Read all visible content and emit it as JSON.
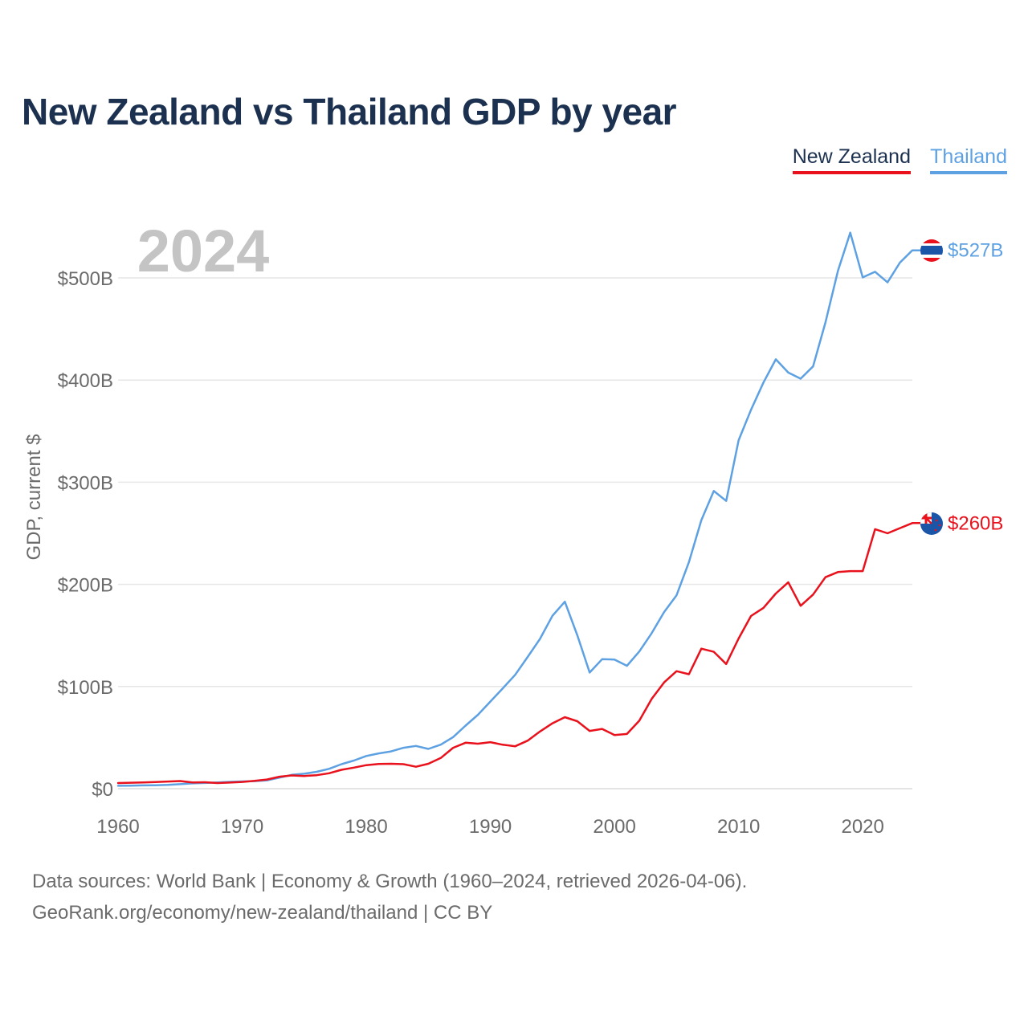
{
  "title": "New Zealand vs Thailand GDP by year",
  "legend": [
    "New Zealand",
    "Thailand"
  ],
  "footer": {
    "source": "Data sources: World Bank | Economy & Growth (1960–2024, retrieved 2026-04-06).",
    "credit": "GeoRank.org/economy/new-zealand/thailand | CC BY"
  },
  "chart_data": {
    "type": "line",
    "title": "New Zealand vs Thailand GDP by year",
    "year_label": "2024",
    "xlabel": "",
    "ylabel": "GDP, current $",
    "xlim": [
      1960,
      2024
    ],
    "ylim": [
      0,
      550
    ],
    "unit": "billion current US$",
    "grid": true,
    "legend_position": "top-right",
    "x_ticks": [
      1960,
      1970,
      1980,
      1990,
      2000,
      2010,
      2020
    ],
    "x_tick_labels": [
      "1960",
      "1970",
      "1980",
      "1990",
      "2000",
      "2010",
      "2020"
    ],
    "y_ticks": [
      0,
      100,
      200,
      300,
      400,
      500
    ],
    "y_tick_labels": [
      "$0",
      "$100B",
      "$200B",
      "$300B",
      "$400B",
      "$500B"
    ],
    "x": [
      1960,
      1961,
      1962,
      1963,
      1964,
      1965,
      1966,
      1967,
      1968,
      1969,
      1970,
      1971,
      1972,
      1973,
      1974,
      1975,
      1976,
      1977,
      1978,
      1979,
      1980,
      1981,
      1982,
      1983,
      1984,
      1985,
      1986,
      1987,
      1988,
      1989,
      1990,
      1991,
      1992,
      1993,
      1994,
      1995,
      1996,
      1997,
      1998,
      1999,
      2000,
      2001,
      2002,
      2003,
      2004,
      2005,
      2006,
      2007,
      2008,
      2009,
      2010,
      2011,
      2012,
      2013,
      2014,
      2015,
      2016,
      2017,
      2018,
      2019,
      2020,
      2021,
      2022,
      2023,
      2024
    ],
    "series": [
      {
        "name": "New Zealand",
        "color": "#e8111c",
        "end_label": "$260B",
        "values": [
          5.5,
          5.8,
          6.1,
          6.5,
          7.0,
          7.5,
          6.1,
          6.3,
          5.5,
          6.0,
          6.6,
          7.6,
          9.0,
          11.7,
          13.0,
          12.4,
          13.2,
          15.1,
          18.5,
          20.6,
          23.0,
          24.1,
          24.4,
          24.0,
          21.5,
          24.4,
          30.0,
          40.0,
          45.0,
          44.0,
          45.5,
          43.0,
          41.5,
          47.0,
          56.0,
          64.0,
          70.0,
          66.0,
          56.5,
          58.5,
          52.5,
          53.5,
          66.5,
          88.0,
          104.0,
          115.0,
          112.0,
          137.0,
          134.0,
          122.0,
          147.0,
          169.0,
          177.0,
          191.0,
          202.0,
          179.0,
          190.0,
          207.0,
          212.0,
          213.0,
          213.0,
          254.0,
          250.0,
          255.0,
          260.0
        ]
      },
      {
        "name": "Thailand",
        "color": "#5ea1e3",
        "end_label": "$527B",
        "values": [
          2.8,
          3.0,
          3.2,
          3.4,
          3.7,
          4.4,
          5.2,
          5.6,
          6.1,
          6.7,
          7.1,
          7.4,
          8.2,
          10.8,
          13.5,
          14.6,
          16.5,
          19.4,
          24.0,
          27.5,
          32.0,
          34.5,
          36.5,
          40.0,
          41.8,
          38.9,
          43.1,
          50.5,
          61.7,
          72.3,
          85.3,
          98.2,
          111.5,
          128.9,
          146.7,
          169.3,
          183.0,
          150.2,
          113.7,
          126.7,
          126.4,
          120.3,
          134.3,
          152.3,
          172.9,
          189.3,
          221.8,
          262.9,
          291.4,
          281.7,
          341.1,
          370.8,
          397.6,
          420.3,
          407.3,
          401.3,
          413.4,
          456.4,
          506.8,
          544.3,
          500.5,
          506.0,
          495.6,
          514.9,
          527.0
        ]
      }
    ]
  }
}
